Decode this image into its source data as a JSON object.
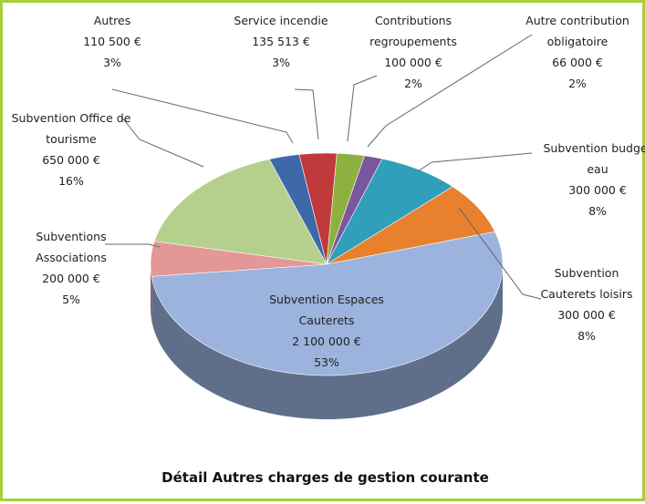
{
  "chart_data": {
    "type": "pie",
    "title": "Détail Autres charges de gestion courante",
    "categories": [
      "Autres",
      "Service incendie",
      "Contributions regroupements",
      "Autre contribution obligatoire",
      "Subvention budget eau",
      "Subvention Cauterets loisirs",
      "Subvention Espaces Cauterets",
      "Subventions Associations",
      "Subvention Office de tourisme"
    ],
    "values": [
      110500,
      135513,
      100000,
      66000,
      300000,
      300000,
      2100000,
      200000,
      650000
    ],
    "value_labels": [
      "110 500 €",
      "135 513 €",
      "100 000 €",
      "66 000 €",
      "300 000 €",
      "300 000 €",
      "2 100 000 €",
      "200 000 €",
      "650 000 €"
    ],
    "percent_labels": [
      "3%",
      "3%",
      "2%",
      "2%",
      "8%",
      "8%",
      "53%",
      "5%",
      "16%"
    ],
    "colors": [
      "#3e68a8",
      "#c0393b",
      "#8db040",
      "#7a569d",
      "#2f9fba",
      "#e8802e",
      "#9bb3dd",
      "#e39797",
      "#b5d08d"
    ]
  }
}
